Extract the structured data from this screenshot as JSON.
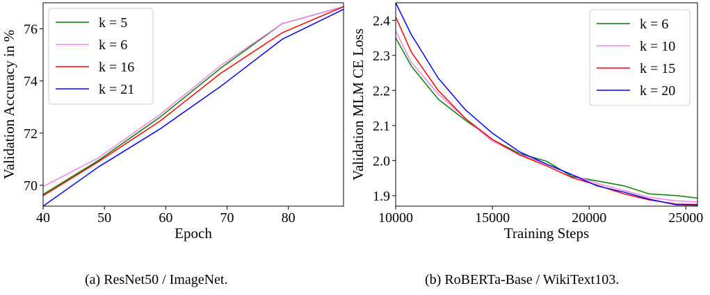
{
  "chart_data": [
    {
      "type": "line",
      "xlabel": "Epoch",
      "ylabel": "Validation Accuracy in %",
      "xlim": [
        40,
        89
      ],
      "ylim": [
        69.2,
        77.0
      ],
      "xticks": [
        40,
        50,
        60,
        70,
        80
      ],
      "yticks": [
        70,
        72,
        74,
        76
      ],
      "xtick_labels": [
        "40",
        "50",
        "60",
        "70",
        "80"
      ],
      "ytick_labels": [
        "70",
        "72",
        "74",
        "76"
      ],
      "legend_position": "upper left",
      "grid": false,
      "series": [
        {
          "name": "k = 5",
          "color": "#008000",
          "x": [
            40,
            49,
            59,
            69,
            79,
            89
          ],
          "y": [
            69.65,
            70.95,
            72.6,
            74.5,
            76.2,
            76.85
          ]
        },
        {
          "name": "k = 6",
          "color": "#ee82ee",
          "x": [
            40,
            49,
            59,
            69,
            79,
            89
          ],
          "y": [
            69.95,
            71.05,
            72.7,
            74.6,
            76.2,
            76.85
          ]
        },
        {
          "name": "k = 16",
          "color": "#ff0000",
          "x": [
            40,
            49,
            59,
            69,
            79,
            89
          ],
          "y": [
            69.6,
            70.9,
            72.45,
            74.3,
            75.85,
            76.85
          ]
        },
        {
          "name": "k = 21",
          "color": "#0000ff",
          "x": [
            40,
            49,
            59,
            69,
            79,
            89
          ],
          "y": [
            69.2,
            70.7,
            72.15,
            73.8,
            75.6,
            76.75
          ]
        }
      ]
    },
    {
      "type": "line",
      "xlabel": "Training Steps",
      "ylabel": "Validation MLM CE Loss",
      "xlim": [
        10000,
        25600
      ],
      "ylim": [
        1.87,
        2.45
      ],
      "xticks": [
        10000,
        15000,
        20000,
        25000
      ],
      "yticks": [
        1.9,
        2.0,
        2.1,
        2.2,
        2.3,
        2.4
      ],
      "xtick_labels": [
        "10000",
        "15000",
        "20000",
        "25000"
      ],
      "ytick_labels": [
        "1.9",
        "2.0",
        "2.1",
        "2.2",
        "2.3",
        "2.4"
      ],
      "legend_position": "upper right",
      "grid": false,
      "series": [
        {
          "name": "k = 6",
          "color": "#008000",
          "x": [
            10000,
            10800,
            12200,
            13600,
            15000,
            16400,
            17800,
            19100,
            20400,
            21800,
            23100,
            24500,
            25600
          ],
          "y": [
            2.35,
            2.27,
            2.175,
            2.115,
            2.06,
            2.02,
            1.998,
            1.955,
            1.942,
            1.928,
            1.905,
            1.9,
            1.893
          ]
        },
        {
          "name": "k = 10",
          "color": "#ee82ee",
          "x": [
            10000,
            10800,
            12200,
            13600,
            15000,
            16400,
            17800,
            19100,
            20400,
            21800,
            23100,
            24500,
            25600
          ],
          "y": [
            2.37,
            2.28,
            2.19,
            2.12,
            2.055,
            2.018,
            1.99,
            1.96,
            1.935,
            1.915,
            1.895,
            1.885,
            1.882
          ]
        },
        {
          "name": "k = 15",
          "color": "#ff0000",
          "x": [
            10000,
            10800,
            12200,
            13600,
            15000,
            16400,
            17800,
            19100,
            20400,
            21800,
            23100,
            24500,
            25600
          ],
          "y": [
            2.41,
            2.31,
            2.2,
            2.12,
            2.06,
            2.016,
            1.985,
            1.952,
            1.93,
            1.905,
            1.888,
            1.876,
            1.875
          ]
        },
        {
          "name": "k = 20",
          "color": "#0000ff",
          "x": [
            10000,
            10800,
            12200,
            13600,
            15000,
            16400,
            17800,
            19100,
            20400,
            21800,
            23100,
            24500,
            25600
          ],
          "y": [
            2.45,
            2.36,
            2.235,
            2.145,
            2.078,
            2.025,
            1.99,
            1.96,
            1.928,
            1.91,
            1.89,
            1.874,
            1.873
          ]
        }
      ]
    }
  ],
  "captions": {
    "a": "(a) ResNet50 / ImageNet.",
    "b": "(b) RoBERTa-Base / WikiText103."
  }
}
